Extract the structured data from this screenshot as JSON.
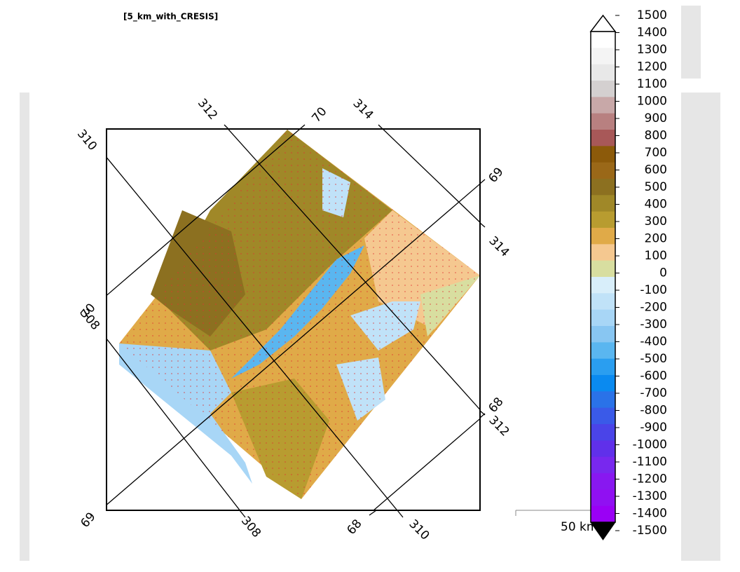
{
  "header": {
    "title": "[5_km_with_CRESIS]"
  },
  "map": {
    "graticule_labels": [
      "312",
      "70",
      "314",
      "310",
      "69",
      "314",
      "70",
      "308",
      "68",
      "312",
      "69",
      "308",
      "68",
      "310"
    ]
  },
  "colorbar": {
    "labels": [
      1500,
      1400,
      1300,
      1200,
      1100,
      1000,
      900,
      800,
      700,
      600,
      500,
      400,
      300,
      200,
      100,
      0,
      -100,
      -200,
      -300,
      -400,
      -500,
      -600,
      -700,
      -800,
      -900,
      -1000,
      -1100,
      -1200,
      -1300,
      -1400,
      -1500
    ],
    "colors": [
      "#ffffff",
      "#f4f4f4",
      "#e8e8e8",
      "#d4d0d0",
      "#c8a8a8",
      "#b88080",
      "#a85858",
      "#8c5a0a",
      "#9a6818",
      "#8c7020",
      "#a08828",
      "#b89c30",
      "#e0aa48",
      "#f5c890",
      "#d8dea0",
      "#d8eefa",
      "#c0e2f8",
      "#a8d6f6",
      "#88c6f2",
      "#5ab6f0",
      "#2a9ef0",
      "#0a8af0",
      "#2a72e8",
      "#3a5ae8",
      "#4a44e8",
      "#6030ea",
      "#7828ee",
      "#8818f0",
      "#9010f2",
      "#9a00f5"
    ]
  },
  "scale_bar": {
    "label": "50 km"
  }
}
